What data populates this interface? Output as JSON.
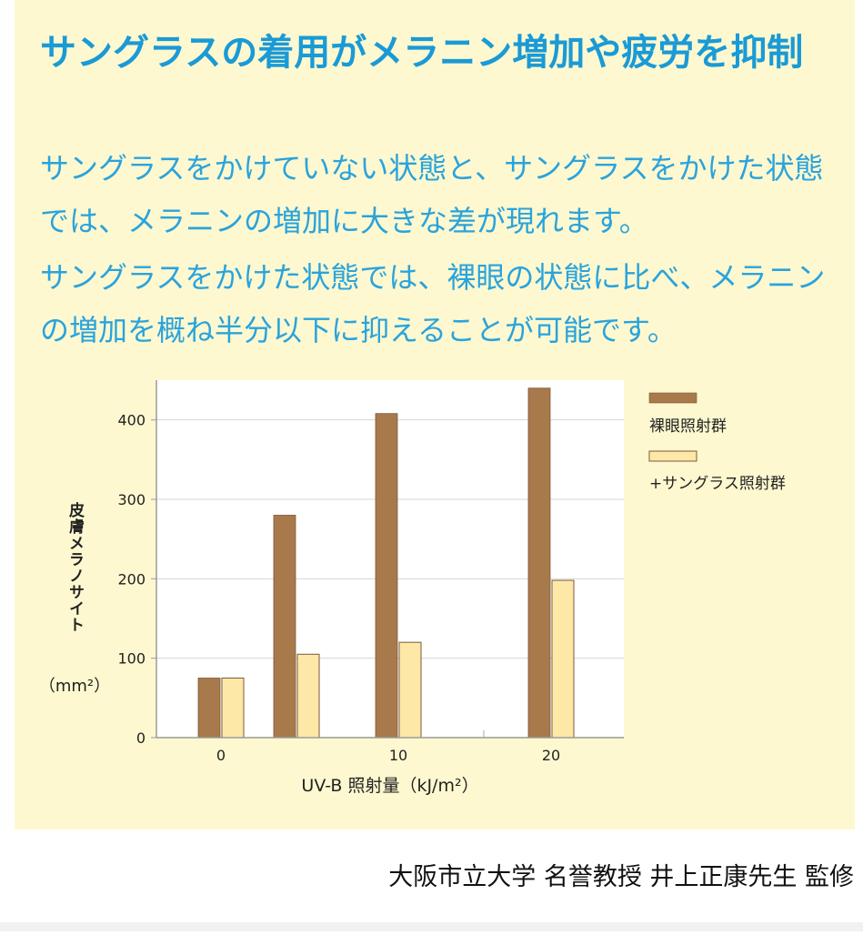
{
  "heading": {
    "title": "サングラスの着用がメラニン増加や疲労を抑制"
  },
  "body": {
    "paragraph1": "サングラスをかけていない状態と、サングラスをかけた状態では、メラニンの増加に大きな差が現れます。",
    "paragraph2": "サングラスをかけた状態では、裸眼の状態に比べ、メラニンの増加を概ね半分以下に抑えることが可能です。"
  },
  "chart_data": {
    "type": "bar",
    "title": "",
    "xlabel": "UV-B 照射量（kJ/m²）",
    "ylabel": "皮膚メラノサイト",
    "yunit": "（mm²）",
    "ylim": [
      0,
      450
    ],
    "yticks": [
      0,
      100,
      200,
      300,
      400
    ],
    "categories": [
      "0",
      "",
      "10",
      "20"
    ],
    "xtick_labels": [
      "0",
      "10",
      "20"
    ],
    "grid": true,
    "legend_position": "right",
    "series": [
      {
        "name": "裸眼照射群",
        "color": "#a8794a",
        "values": [
          75,
          280,
          408,
          440
        ]
      },
      {
        "name": "+サングラス照射群",
        "color": "#fde8a8",
        "values": [
          75,
          105,
          120,
          198
        ]
      }
    ]
  },
  "footer": {
    "credit": "大阪市立大学 名誉教授 井上正康先生 監修"
  }
}
